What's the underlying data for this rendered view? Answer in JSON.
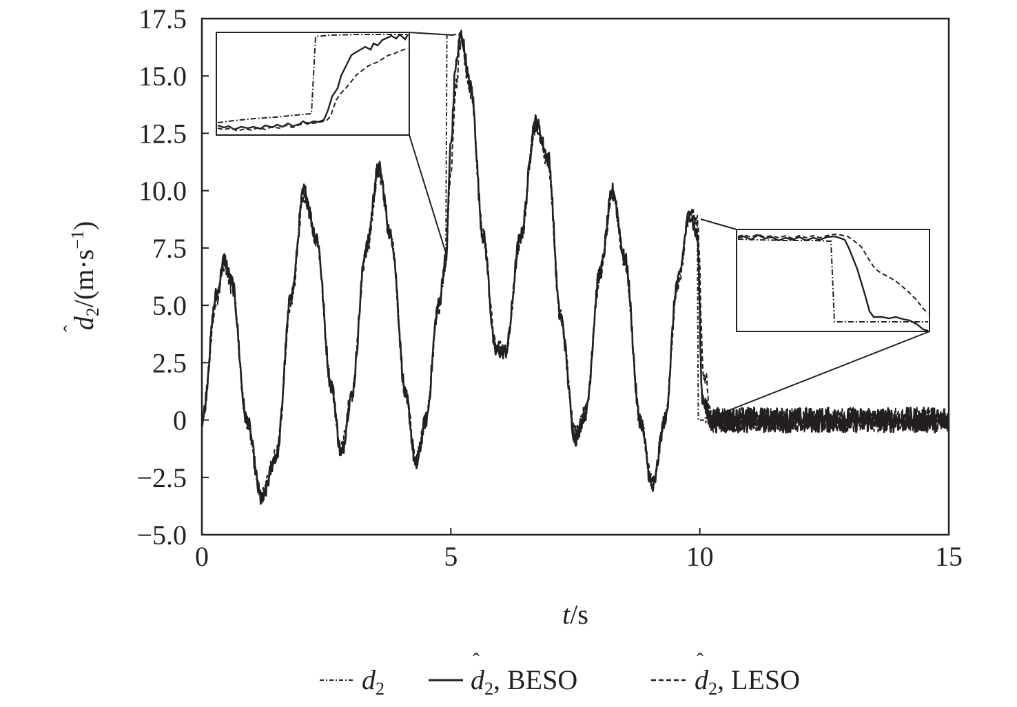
{
  "chart_data": {
    "type": "line",
    "title": "",
    "xlabel": {
      "italic": "t",
      "rest": "/s"
    },
    "ylabel": {
      "symbol": "d",
      "subscript": "2",
      "rest": "/(m·s",
      "sup": "−1",
      "close": ")"
    },
    "xlim": [
      0,
      15
    ],
    "ylim": [
      -5.0,
      17.5
    ],
    "x_ticks": [
      {
        "value": 0,
        "label": "0"
      },
      {
        "value": 5,
        "label": "5"
      },
      {
        "value": 10,
        "label": "10"
      },
      {
        "value": 15,
        "label": "15"
      }
    ],
    "y_ticks": [
      {
        "value": -5.0,
        "label": "−5.0"
      },
      {
        "value": -2.5,
        "label": "−2.5"
      },
      {
        "value": 0,
        "label": "0"
      },
      {
        "value": 2.5,
        "label": "2.5"
      },
      {
        "value": 5.0,
        "label": "5.0"
      },
      {
        "value": 7.5,
        "label": "7.5"
      },
      {
        "value": 10.0,
        "label": "10.0"
      },
      {
        "value": 12.5,
        "label": "12.5"
      },
      {
        "value": 15.0,
        "label": "15.0"
      },
      {
        "value": 17.5,
        "label": "17.5"
      }
    ],
    "grid": false,
    "legend_position": "bottom",
    "series": [
      {
        "name": "d₂",
        "style": "dash-dot",
        "t": [
          0.0,
          0.3,
          0.45,
          0.6,
          0.9,
          1.2,
          1.5,
          1.8,
          2.05,
          2.3,
          2.6,
          2.8,
          3.0,
          3.3,
          3.55,
          3.8,
          4.1,
          4.3,
          4.5,
          4.75,
          4.9,
          4.92,
          5.0,
          5.2,
          5.4,
          5.65,
          5.9,
          6.1,
          6.4,
          6.7,
          6.95,
          7.2,
          7.5,
          7.7,
          8.0,
          8.25,
          8.5,
          8.8,
          9.05,
          9.3,
          9.55,
          9.8,
          9.95,
          9.97,
          10.2,
          10.6,
          11.0,
          11.5,
          12.0,
          12.5,
          13.0,
          13.5,
          14.0,
          14.5,
          15.0
        ],
        "values": [
          0.0,
          5.5,
          7.0,
          6.0,
          0.0,
          -3.5,
          -1.5,
          5.5,
          10.0,
          8.0,
          1.5,
          -1.5,
          1.0,
          7.5,
          11.0,
          8.0,
          1.0,
          -2.0,
          0.0,
          5.0,
          7.0,
          16.8,
          16.8,
          16.8,
          14.5,
          8.0,
          3.0,
          3.0,
          8.0,
          13.0,
          11.5,
          4.5,
          -0.8,
          0.3,
          6.5,
          10.0,
          7.0,
          0.0,
          -3.0,
          0.0,
          6.0,
          9.0,
          8.5,
          0.0,
          0.0,
          0.0,
          0.0,
          0.0,
          0.0,
          0.0,
          0.0,
          0.0,
          0.0,
          0.0,
          0.0
        ]
      },
      {
        "name": "d̂₂, BESO",
        "style": "solid",
        "t": [
          0.0,
          0.3,
          0.45,
          0.6,
          0.9,
          1.2,
          1.5,
          1.8,
          2.05,
          2.3,
          2.6,
          2.8,
          3.0,
          3.3,
          3.55,
          3.8,
          4.1,
          4.3,
          4.5,
          4.75,
          4.9,
          5.0,
          5.1,
          5.2,
          5.4,
          5.65,
          5.9,
          6.1,
          6.4,
          6.7,
          6.95,
          7.2,
          7.5,
          7.7,
          8.0,
          8.25,
          8.5,
          8.8,
          9.05,
          9.3,
          9.55,
          9.8,
          9.95,
          10.05,
          10.2,
          10.6,
          11.0,
          11.5,
          12.0,
          12.5,
          13.0,
          13.5,
          14.0,
          14.5,
          15.0
        ],
        "values": [
          0.0,
          5.5,
          7.0,
          6.0,
          0.0,
          -3.5,
          -1.5,
          5.5,
          10.0,
          8.0,
          1.5,
          -1.5,
          1.0,
          7.5,
          11.0,
          8.0,
          1.0,
          -2.0,
          0.0,
          5.0,
          7.0,
          12.0,
          15.5,
          16.8,
          14.5,
          8.0,
          3.0,
          3.0,
          8.0,
          13.0,
          11.5,
          4.5,
          -0.8,
          0.3,
          6.5,
          10.0,
          7.0,
          0.0,
          -3.0,
          0.0,
          6.0,
          9.0,
          8.0,
          1.0,
          0.0,
          0.0,
          0.0,
          0.0,
          0.0,
          0.0,
          0.0,
          0.0,
          0.0,
          0.0,
          0.0
        ]
      },
      {
        "name": "d̂₂, LESO",
        "style": "dashed",
        "t": [
          0.0,
          0.3,
          0.45,
          0.6,
          0.9,
          1.2,
          1.5,
          1.8,
          2.05,
          2.3,
          2.6,
          2.8,
          3.0,
          3.3,
          3.55,
          3.8,
          4.1,
          4.3,
          4.5,
          4.75,
          4.9,
          5.0,
          5.1,
          5.2,
          5.4,
          5.65,
          5.9,
          6.1,
          6.4,
          6.7,
          6.95,
          7.2,
          7.5,
          7.7,
          8.0,
          8.25,
          8.5,
          8.8,
          9.05,
          9.3,
          9.55,
          9.8,
          9.95,
          10.08,
          10.25,
          10.6,
          11.0,
          11.5,
          12.0,
          12.5,
          13.0,
          13.5,
          14.0,
          14.5,
          15.0
        ],
        "values": [
          0.0,
          5.3,
          6.8,
          5.8,
          0.0,
          -3.3,
          -1.5,
          5.3,
          9.8,
          7.8,
          1.5,
          -1.3,
          1.0,
          7.3,
          10.8,
          7.8,
          1.0,
          -1.8,
          0.0,
          4.8,
          6.8,
          11.0,
          14.5,
          16.5,
          14.3,
          8.0,
          3.2,
          3.0,
          7.8,
          12.8,
          11.3,
          4.5,
          -0.6,
          0.3,
          6.3,
          9.8,
          6.9,
          0.0,
          -2.8,
          0.0,
          5.8,
          9.0,
          8.6,
          2.0,
          0.0,
          0.0,
          0.0,
          0.0,
          0.0,
          0.0,
          0.0,
          0.0,
          0.0,
          0.0,
          0.0
        ]
      }
    ]
  },
  "legend": {
    "items": [
      {
        "symbol": "d",
        "sub": "2",
        "rest": ""
      },
      {
        "symbol": "d",
        "sub": "2",
        "rest": ", BESO"
      },
      {
        "symbol": "d",
        "sub": "2",
        "rest": ", LESO"
      }
    ]
  }
}
